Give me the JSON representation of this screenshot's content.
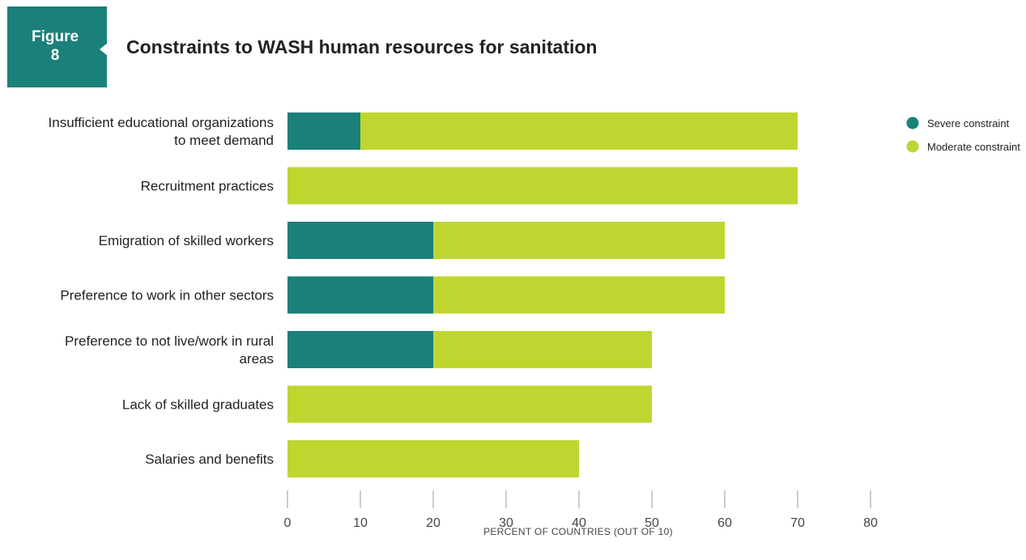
{
  "figure": {
    "word": "Figure",
    "number": "8"
  },
  "chart_data": {
    "type": "bar",
    "orientation": "horizontal",
    "stacked": true,
    "title": "Constraints to WASH human resources for sanitation",
    "xlabel": "PERCENT OF COUNTRIES (OUT OF 10)",
    "ylabel": "",
    "xlim": [
      0,
      80
    ],
    "xticks": [
      0,
      10,
      20,
      30,
      40,
      50,
      60,
      70,
      80
    ],
    "grid": false,
    "legend_position": "top-right",
    "categories": [
      [
        "Insufficient educational organizations",
        "to meet demand"
      ],
      [
        "Recruitment practices"
      ],
      [
        "Emigration of skilled workers"
      ],
      [
        "Preference to work in other sectors"
      ],
      [
        "Preference to not live/work in rural",
        "areas"
      ],
      [
        "Lack of skilled graduates"
      ],
      [
        "Salaries and benefits"
      ]
    ],
    "series": [
      {
        "name": "Severe constraint",
        "color": "#1a8079",
        "values": [
          10,
          0,
          20,
          20,
          20,
          0,
          0
        ]
      },
      {
        "name": "Moderate constraint",
        "color": "#bfd630",
        "values": [
          60,
          70,
          40,
          40,
          30,
          50,
          40
        ]
      }
    ]
  }
}
